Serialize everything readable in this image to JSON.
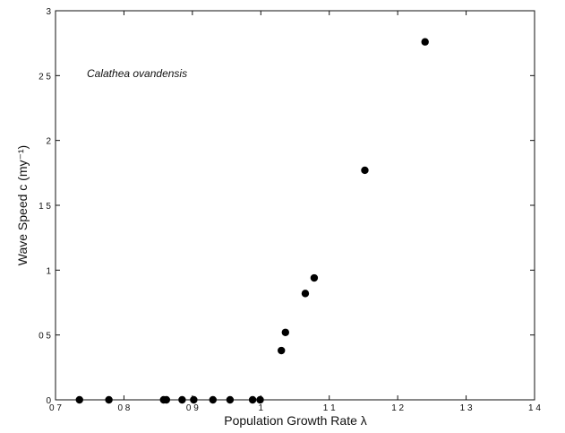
{
  "chart_data": {
    "type": "scatter",
    "title": "",
    "xlabel": "Population Growth Rate λ",
    "ylabel": "Wave Speed  c  (my⁻¹)",
    "xlim": [
      0.7,
      1.4
    ],
    "ylim": [
      0,
      3
    ],
    "xticks": [
      0.7,
      0.8,
      0.9,
      1.0,
      1.1,
      1.2,
      1.3,
      1.4
    ],
    "xtick_labels": [
      "0 7",
      "0 8",
      "0 9",
      "1",
      "1 1",
      "1 2",
      "1 3",
      "1 4"
    ],
    "yticks": [
      0,
      0.5,
      1,
      1.5,
      2,
      2.5,
      3
    ],
    "ytick_labels": [
      "0",
      "0 5",
      "1",
      "1 5",
      "2",
      "2 5",
      "3"
    ],
    "annotation": "Calathea ovandensis",
    "grid": false,
    "marker_color": "#000000",
    "x": [
      0.735,
      0.778,
      0.858,
      0.862,
      0.885,
      0.902,
      0.93,
      0.955,
      0.988,
      0.999,
      1.03,
      1.036,
      1.065,
      1.078,
      1.152,
      1.24
    ],
    "y": [
      0,
      0,
      0,
      0,
      0,
      0,
      0,
      0,
      0,
      0,
      0.38,
      0.52,
      0.82,
      0.94,
      1.77,
      2.76
    ]
  }
}
